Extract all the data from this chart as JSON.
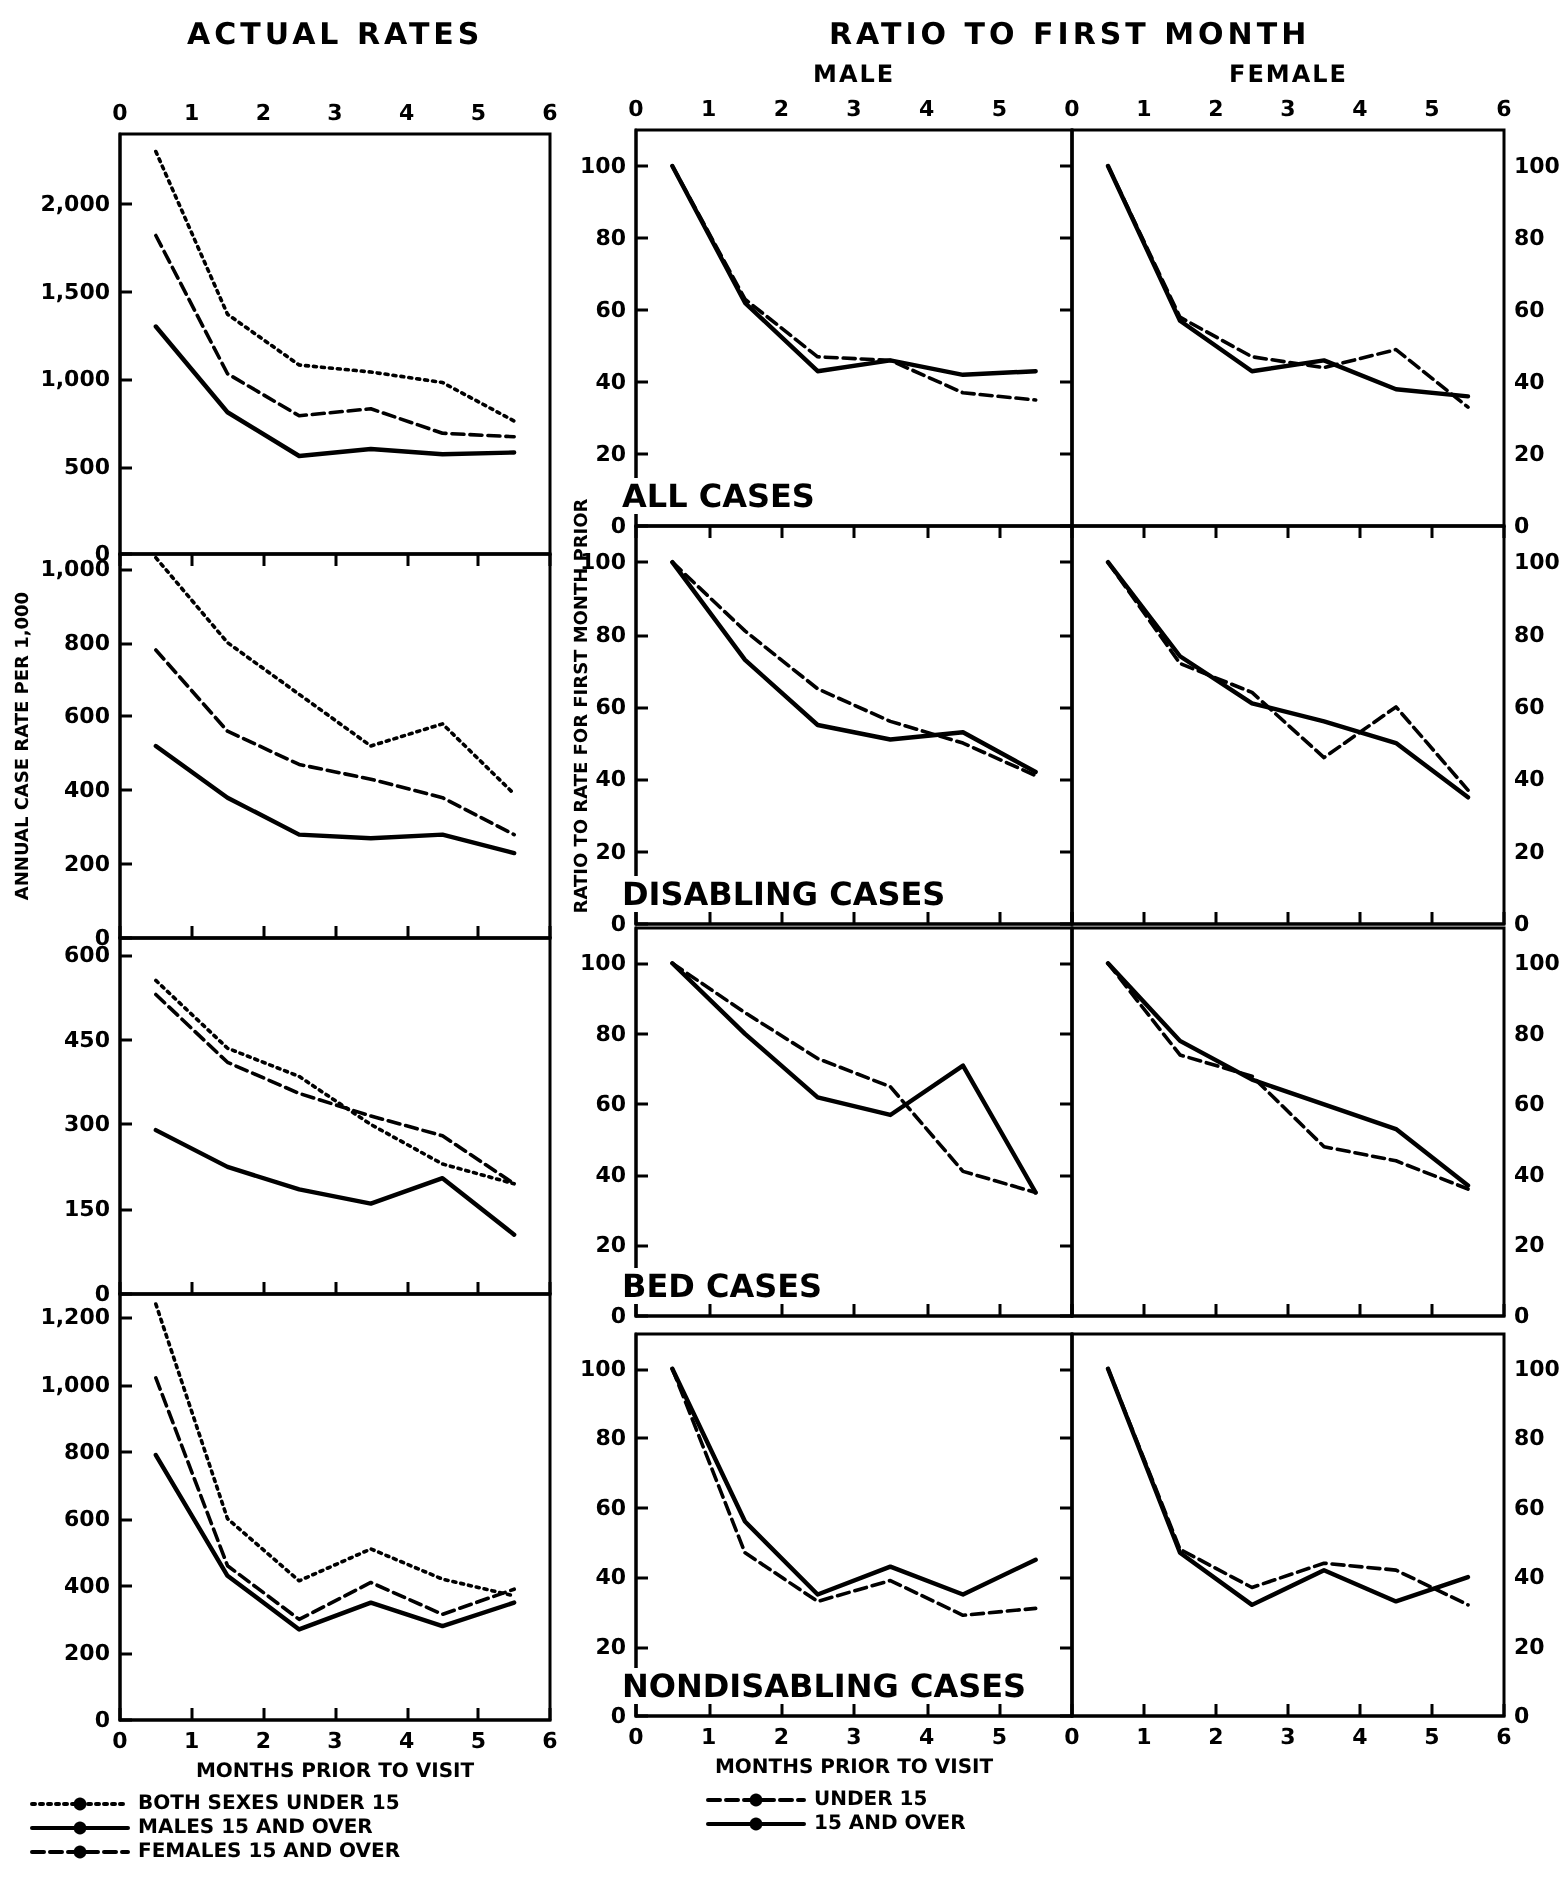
{
  "chart_data": [
    {
      "type": "line",
      "title": "ACTUAL RATES",
      "marker": "none",
      "x": [
        0.5,
        1.5,
        2.5,
        3.5,
        4.5,
        5.5
      ],
      "xlim": [
        0,
        6
      ],
      "xticks": [
        0,
        1,
        2,
        3,
        4,
        5,
        6
      ],
      "ylim": [
        0,
        2400
      ],
      "yticks": [
        0,
        500,
        {
          "value": 1000,
          "label": "1,000"
        },
        {
          "value": 1500,
          "label": "1,500"
        },
        {
          "value": 2000,
          "label": "2,000"
        }
      ],
      "series": [
        {
          "color": "#000000",
          "line_style": "dotted",
          "values": [
            2300,
            1370,
            1080,
            1040,
            980,
            760
          ]
        },
        {
          "color": "#000000",
          "line_style": "solid",
          "values": [
            1300,
            810,
            560,
            600,
            570,
            580
          ]
        },
        {
          "color": "#000000",
          "line_style": "dashed",
          "values": [
            1820,
            1030,
            790,
            830,
            690,
            670
          ]
        }
      ]
    },
    {
      "type": "line",
      "title": "RATIO TO FIRST MONTH",
      "subtitle": "MALE",
      "annotations": [
        "ALL CASES"
      ],
      "marker": "none",
      "x": [
        0.5,
        1.5,
        2.5,
        3.5,
        4.5,
        5.5
      ],
      "xlim": [
        0,
        6
      ],
      "xticks": [
        0,
        1,
        2,
        3,
        4,
        5
      ],
      "ylim": [
        0,
        110
      ],
      "yticks": [
        0,
        20,
        40,
        60,
        80,
        100
      ],
      "series": [
        {
          "color": "#000000",
          "line_style": "dashed",
          "values": [
            100,
            63,
            47,
            46,
            37,
            35
          ]
        },
        {
          "color": "#000000",
          "line_style": "solid",
          "values": [
            100,
            62,
            43,
            46,
            42,
            43
          ]
        }
      ]
    },
    {
      "type": "line",
      "subtitle": "FEMALE",
      "marker": "none",
      "x": [
        0.5,
        1.5,
        2.5,
        3.5,
        4.5,
        5.5
      ],
      "xlim": [
        0,
        6
      ],
      "xticks": [
        0,
        1,
        2,
        3,
        4,
        5,
        6
      ],
      "ylim": [
        0,
        110
      ],
      "yticks": [
        0,
        20,
        40,
        60,
        80,
        100
      ],
      "series": [
        {
          "color": "#000000",
          "line_style": "dashed",
          "values": [
            100,
            58,
            47,
            44,
            49,
            33
          ]
        },
        {
          "color": "#000000",
          "line_style": "solid",
          "values": [
            100,
            57,
            43,
            46,
            38,
            36
          ]
        }
      ]
    },
    {
      "type": "line",
      "ylabel": "ANNUAL CASE RATE PER 1,000",
      "marker": "none",
      "tick_labels": "y",
      "x": [
        0.5,
        1.5,
        2.5,
        3.5,
        4.5,
        5.5
      ],
      "xlim": [
        0,
        6
      ],
      "xticks": [
        0,
        1,
        2,
        3,
        4,
        5,
        6
      ],
      "ylim": [
        0,
        1040
      ],
      "yticks": [
        0,
        200,
        400,
        600,
        800,
        {
          "value": 1000,
          "label": "1,000"
        }
      ],
      "series": [
        {
          "color": "#000000",
          "line_style": "dotted",
          "values": [
            1030,
            800,
            660,
            520,
            580,
            390
          ]
        },
        {
          "color": "#000000",
          "line_style": "solid",
          "values": [
            520,
            380,
            280,
            270,
            280,
            230
          ]
        },
        {
          "color": "#000000",
          "line_style": "dashed",
          "values": [
            780,
            560,
            470,
            430,
            380,
            280
          ]
        }
      ]
    },
    {
      "type": "line",
      "ylabel": "RATIO TO RATE FOR FIRST MONTH PRIOR",
      "annotations": [
        "DISABLING CASES"
      ],
      "marker": "none",
      "tick_labels": "y",
      "x": [
        0.5,
        1.5,
        2.5,
        3.5,
        4.5,
        5.5
      ],
      "xlim": [
        0,
        6
      ],
      "xticks": [
        0,
        1,
        2,
        3,
        4,
        5,
        6
      ],
      "ylim": [
        0,
        110
      ],
      "yticks": [
        0,
        20,
        40,
        60,
        80,
        100
      ],
      "series": [
        {
          "color": "#000000",
          "line_style": "dashed",
          "values": [
            100,
            81,
            65,
            56,
            50,
            41
          ]
        },
        {
          "color": "#000000",
          "line_style": "solid",
          "values": [
            100,
            73,
            55,
            51,
            53,
            42
          ]
        }
      ]
    },
    {
      "type": "line",
      "marker": "none",
      "tick_labels": "y",
      "x": [
        0.5,
        1.5,
        2.5,
        3.5,
        4.5,
        5.5
      ],
      "xlim": [
        0,
        6
      ],
      "xticks": [
        0,
        1,
        2,
        3,
        4,
        5,
        6
      ],
      "ylim": [
        0,
        110
      ],
      "yticks": [
        0,
        20,
        40,
        60,
        80,
        100
      ],
      "series": [
        {
          "color": "#000000",
          "line_style": "dashed",
          "values": [
            100,
            72,
            64,
            46,
            60,
            37
          ]
        },
        {
          "color": "#000000",
          "line_style": "solid",
          "values": [
            100,
            74,
            61,
            56,
            50,
            35
          ]
        }
      ]
    },
    {
      "type": "line",
      "marker": "none",
      "tick_labels": "y",
      "x": [
        0.5,
        1.5,
        2.5,
        3.5,
        4.5,
        5.5
      ],
      "xlim": [
        0,
        6
      ],
      "xticks": [
        0,
        1,
        2,
        3,
        4,
        5,
        6
      ],
      "ylim": [
        0,
        630
      ],
      "yticks": [
        0,
        150,
        300,
        450,
        600
      ],
      "series": [
        {
          "color": "#000000",
          "line_style": "dotted",
          "values": [
            555,
            435,
            385,
            300,
            230,
            195
          ]
        },
        {
          "color": "#000000",
          "line_style": "solid",
          "values": [
            290,
            225,
            185,
            160,
            205,
            105
          ]
        },
        {
          "color": "#000000",
          "line_style": "dashed",
          "values": [
            530,
            410,
            355,
            315,
            280,
            195
          ]
        }
      ]
    },
    {
      "type": "line",
      "annotations": [
        "BED CASES"
      ],
      "marker": "none",
      "tick_labels": "y",
      "x": [
        0.5,
        1.5,
        2.5,
        3.5,
        4.5,
        5.5
      ],
      "xlim": [
        0,
        6
      ],
      "xticks": [
        0,
        1,
        2,
        3,
        4,
        5,
        6
      ],
      "ylim": [
        0,
        110
      ],
      "yticks": [
        0,
        20,
        40,
        60,
        80,
        100
      ],
      "series": [
        {
          "color": "#000000",
          "line_style": "dashed",
          "values": [
            100,
            86,
            73,
            65,
            41,
            35
          ]
        },
        {
          "color": "#000000",
          "line_style": "solid",
          "values": [
            100,
            80,
            62,
            57,
            71,
            35
          ]
        }
      ]
    },
    {
      "type": "line",
      "marker": "none",
      "tick_labels": "y",
      "x": [
        0.5,
        1.5,
        2.5,
        3.5,
        4.5,
        5.5
      ],
      "xlim": [
        0,
        6
      ],
      "xticks": [
        0,
        1,
        2,
        3,
        4,
        5,
        6
      ],
      "ylim": [
        0,
        110
      ],
      "yticks": [
        0,
        20,
        40,
        60,
        80,
        100
      ],
      "series": [
        {
          "color": "#000000",
          "line_style": "dashed",
          "values": [
            100,
            74,
            68,
            48,
            44,
            36
          ]
        },
        {
          "color": "#000000",
          "line_style": "solid",
          "values": [
            100,
            78,
            67,
            60,
            53,
            37
          ]
        }
      ]
    },
    {
      "type": "line",
      "xlabel": "MONTHS PRIOR TO VISIT",
      "legend": "bottom",
      "marker": "none",
      "x": [
        0.5,
        1.5,
        2.5,
        3.5,
        4.5,
        5.5
      ],
      "xlim": [
        0,
        6
      ],
      "xticks": [
        0,
        1,
        2,
        3,
        4,
        5,
        6
      ],
      "ylim": [
        0,
        1270
      ],
      "yticks": [
        0,
        200,
        400,
        600,
        800,
        {
          "value": 1000,
          "label": "1,000"
        },
        {
          "value": 1200,
          "label": "1,200"
        }
      ],
      "series": [
        {
          "name": "BOTH SEXES UNDER 15",
          "color": "#000000",
          "line_style": "dotted",
          "values": [
            1240,
            600,
            415,
            510,
            420,
            370
          ]
        },
        {
          "name": "MALES 15 AND OVER",
          "color": "#000000",
          "line_style": "solid",
          "values": [
            790,
            430,
            270,
            350,
            280,
            350
          ]
        },
        {
          "name": "FEMALES 15 AND OVER",
          "color": "#000000",
          "line_style": "dashed",
          "values": [
            1020,
            460,
            300,
            410,
            315,
            390
          ]
        }
      ]
    },
    {
      "type": "line",
      "xlabel": "MONTHS PRIOR TO VISIT",
      "annotations": [
        "NONDISABLING CASES"
      ],
      "legend": "bottom",
      "marker": "none",
      "x": [
        0.5,
        1.5,
        2.5,
        3.5,
        4.5,
        5.5
      ],
      "xlim": [
        0,
        6
      ],
      "xticks": [
        0,
        1,
        2,
        3,
        4,
        5
      ],
      "ylim": [
        0,
        110
      ],
      "yticks": [
        0,
        20,
        40,
        60,
        80,
        100
      ],
      "series": [
        {
          "name": "UNDER 15",
          "color": "#000000",
          "line_style": "dashed",
          "values": [
            100,
            47,
            33,
            39,
            29,
            31
          ]
        },
        {
          "name": "15 AND OVER",
          "color": "#000000",
          "line_style": "solid",
          "values": [
            100,
            56,
            35,
            43,
            35,
            45
          ]
        }
      ]
    },
    {
      "type": "line",
      "marker": "none",
      "x": [
        0.5,
        1.5,
        2.5,
        3.5,
        4.5,
        5.5
      ],
      "xlim": [
        0,
        6
      ],
      "xticks": [
        0,
        1,
        2,
        3,
        4,
        5,
        6
      ],
      "ylim": [
        0,
        110
      ],
      "yticks": [
        0,
        20,
        40,
        60,
        80,
        100
      ],
      "series": [
        {
          "color": "#000000",
          "line_style": "dashed",
          "values": [
            100,
            48,
            37,
            44,
            42,
            32
          ]
        },
        {
          "color": "#000000",
          "line_style": "solid",
          "values": [
            100,
            47,
            32,
            42,
            33,
            40
          ]
        }
      ]
    }
  ]
}
